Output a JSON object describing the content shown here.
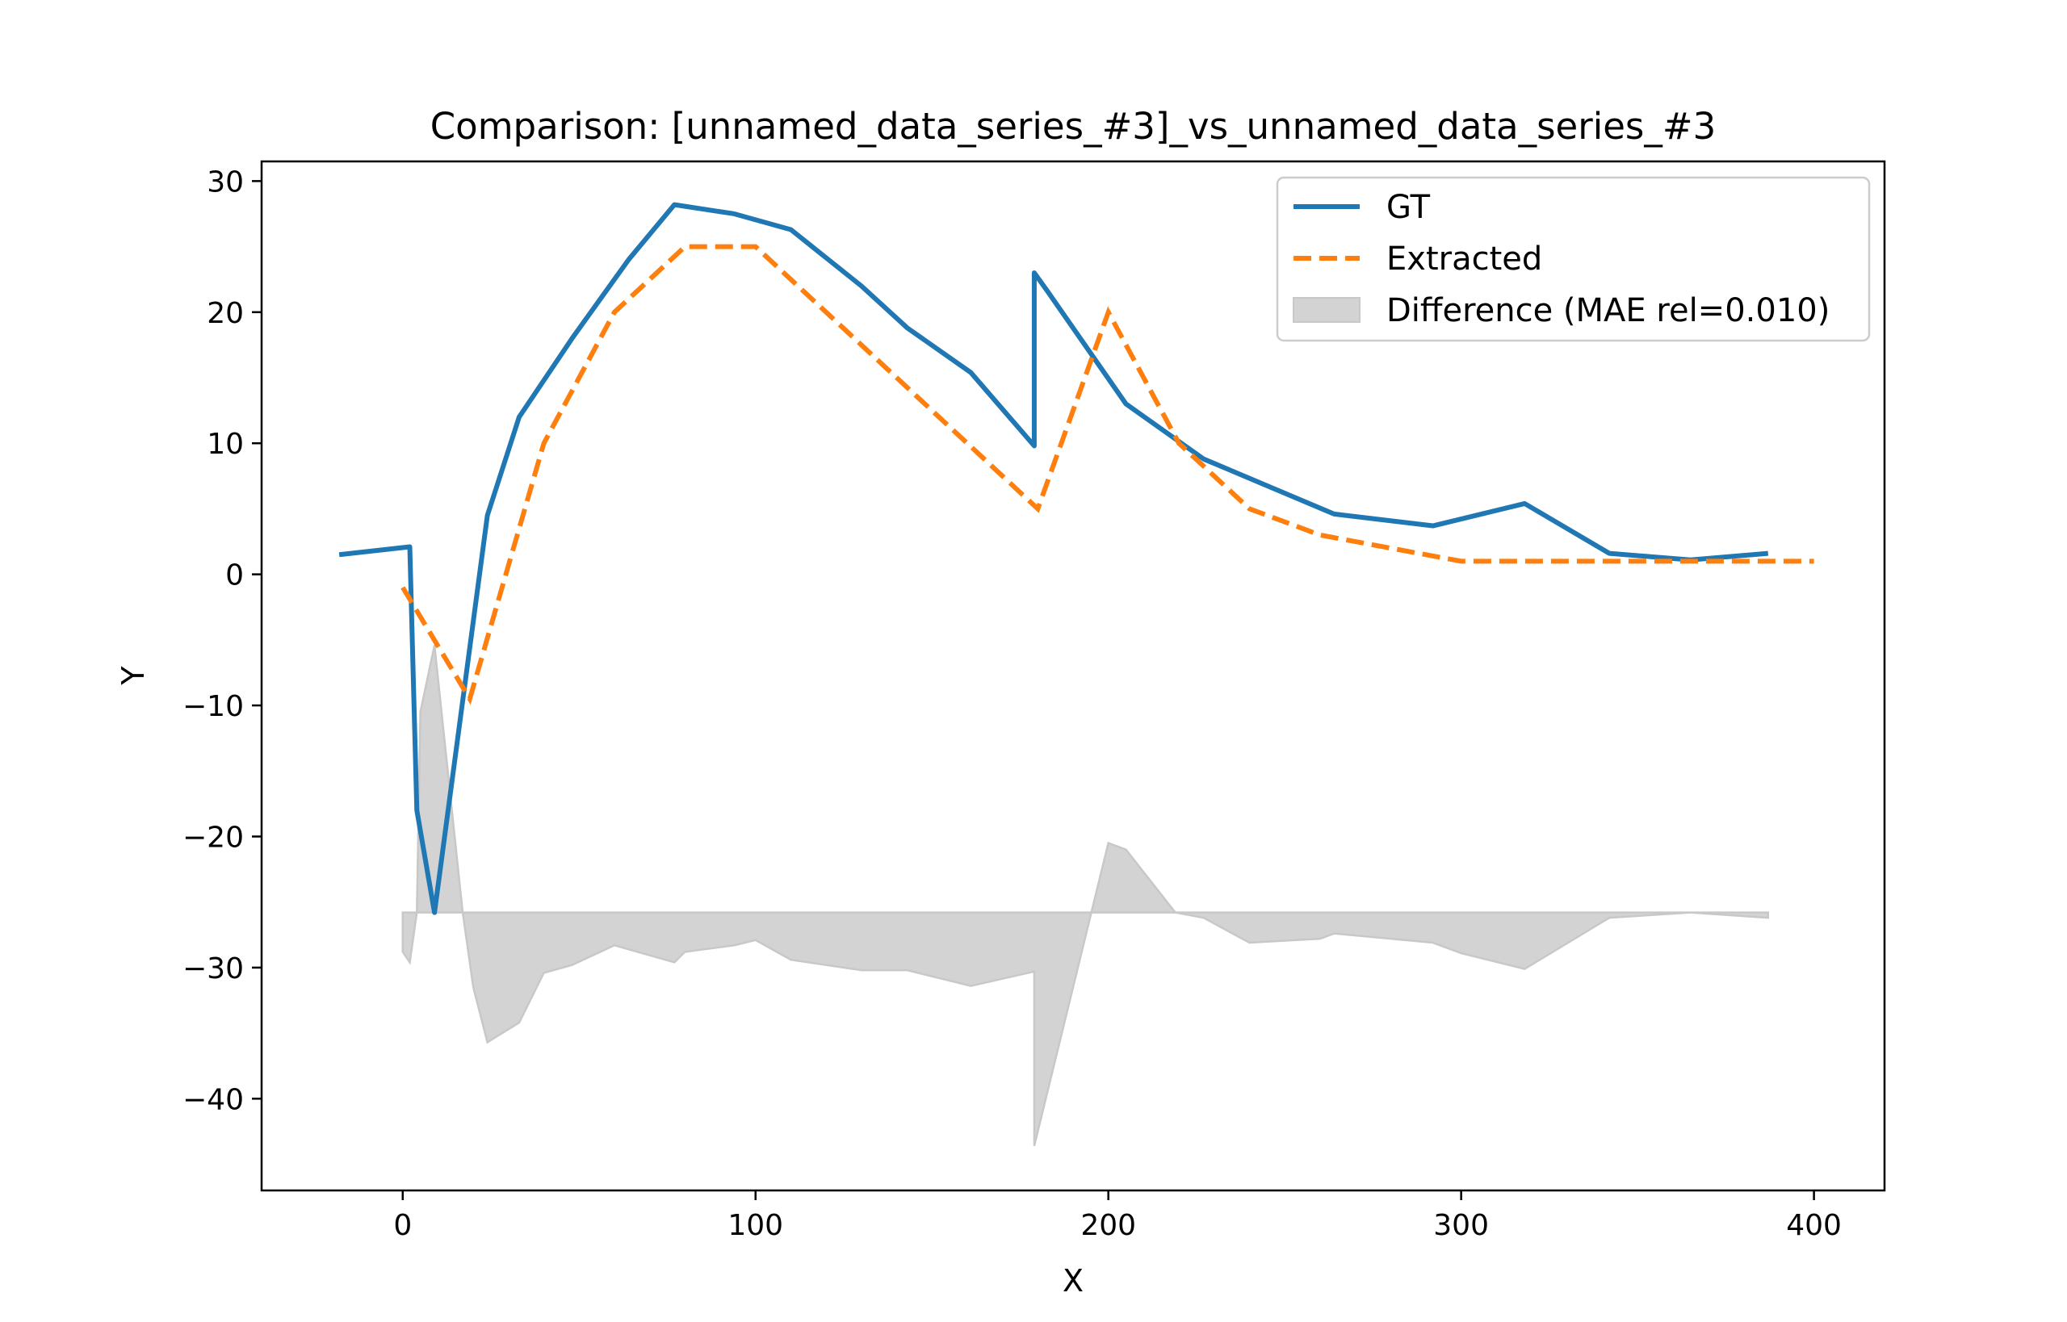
{
  "chart_data": {
    "type": "line",
    "title": "Comparison: [unnamed_data_series_#3]_vs_unnamed_data_series_#3",
    "xlabel": "X",
    "ylabel": "Y",
    "xlim": [
      -40,
      420
    ],
    "ylim": [
      -47,
      31.5
    ],
    "xticks": [
      0,
      100,
      200,
      300,
      400
    ],
    "yticks": [
      30,
      20,
      10,
      0,
      -10,
      -20,
      -30,
      -40
    ],
    "grid": false,
    "legend_position": "top-right",
    "series": [
      {
        "name": "GT",
        "color": "#1f77b4",
        "style": "solid",
        "x": [
          -18,
          2,
          4,
          9,
          24,
          33,
          48,
          64,
          77,
          94,
          110,
          130,
          143,
          161,
          179,
          179,
          183,
          205,
          227,
          264,
          292,
          318,
          342,
          365,
          387
        ],
        "y": [
          1.5,
          2.1,
          -18,
          -25.8,
          4.5,
          12,
          18,
          24,
          28.2,
          27.5,
          26.3,
          22,
          18.8,
          15.4,
          9.8,
          23,
          21.5,
          13,
          8.8,
          4.6,
          3.7,
          5.4,
          1.6,
          1.1,
          1.6
        ]
      },
      {
        "name": "Extracted",
        "color": "#ff7f0e",
        "style": "dashed",
        "x": [
          0,
          19,
          40,
          60,
          80,
          100,
          180,
          200,
          220,
          240,
          260,
          280,
          300,
          400
        ],
        "y": [
          -1,
          -9.5,
          10,
          20,
          25,
          25,
          5,
          20,
          10,
          5,
          3,
          2,
          1,
          1
        ]
      },
      {
        "name": "Difference (MAE rel=0.010)",
        "type": "area",
        "color": "#d3d3d3",
        "baseline": -25.8,
        "x": [
          0,
          2,
          4,
          5,
          9,
          17,
          20,
          24,
          33,
          40,
          48,
          60,
          77,
          80,
          94,
          100,
          110,
          130,
          143,
          161,
          179,
          179,
          200,
          205,
          219,
          227,
          240,
          260,
          264,
          292,
          300,
          318,
          342,
          365,
          387
        ],
        "y": [
          -28.8,
          -29.6,
          -25.8,
          -10.5,
          -5.4,
          -25.8,
          -31.5,
          -35.7,
          -34.2,
          -30.4,
          -29.8,
          -28.3,
          -29.6,
          -28.8,
          -28.3,
          -27.9,
          -29.4,
          -30.2,
          -30.2,
          -31.4,
          -30.3,
          -43.6,
          -20.5,
          -21,
          -25.8,
          -26.2,
          -28.1,
          -27.8,
          -27.4,
          -28.1,
          -28.9,
          -30.1,
          -26.2,
          -25.8,
          -26.2
        ]
      }
    ]
  }
}
